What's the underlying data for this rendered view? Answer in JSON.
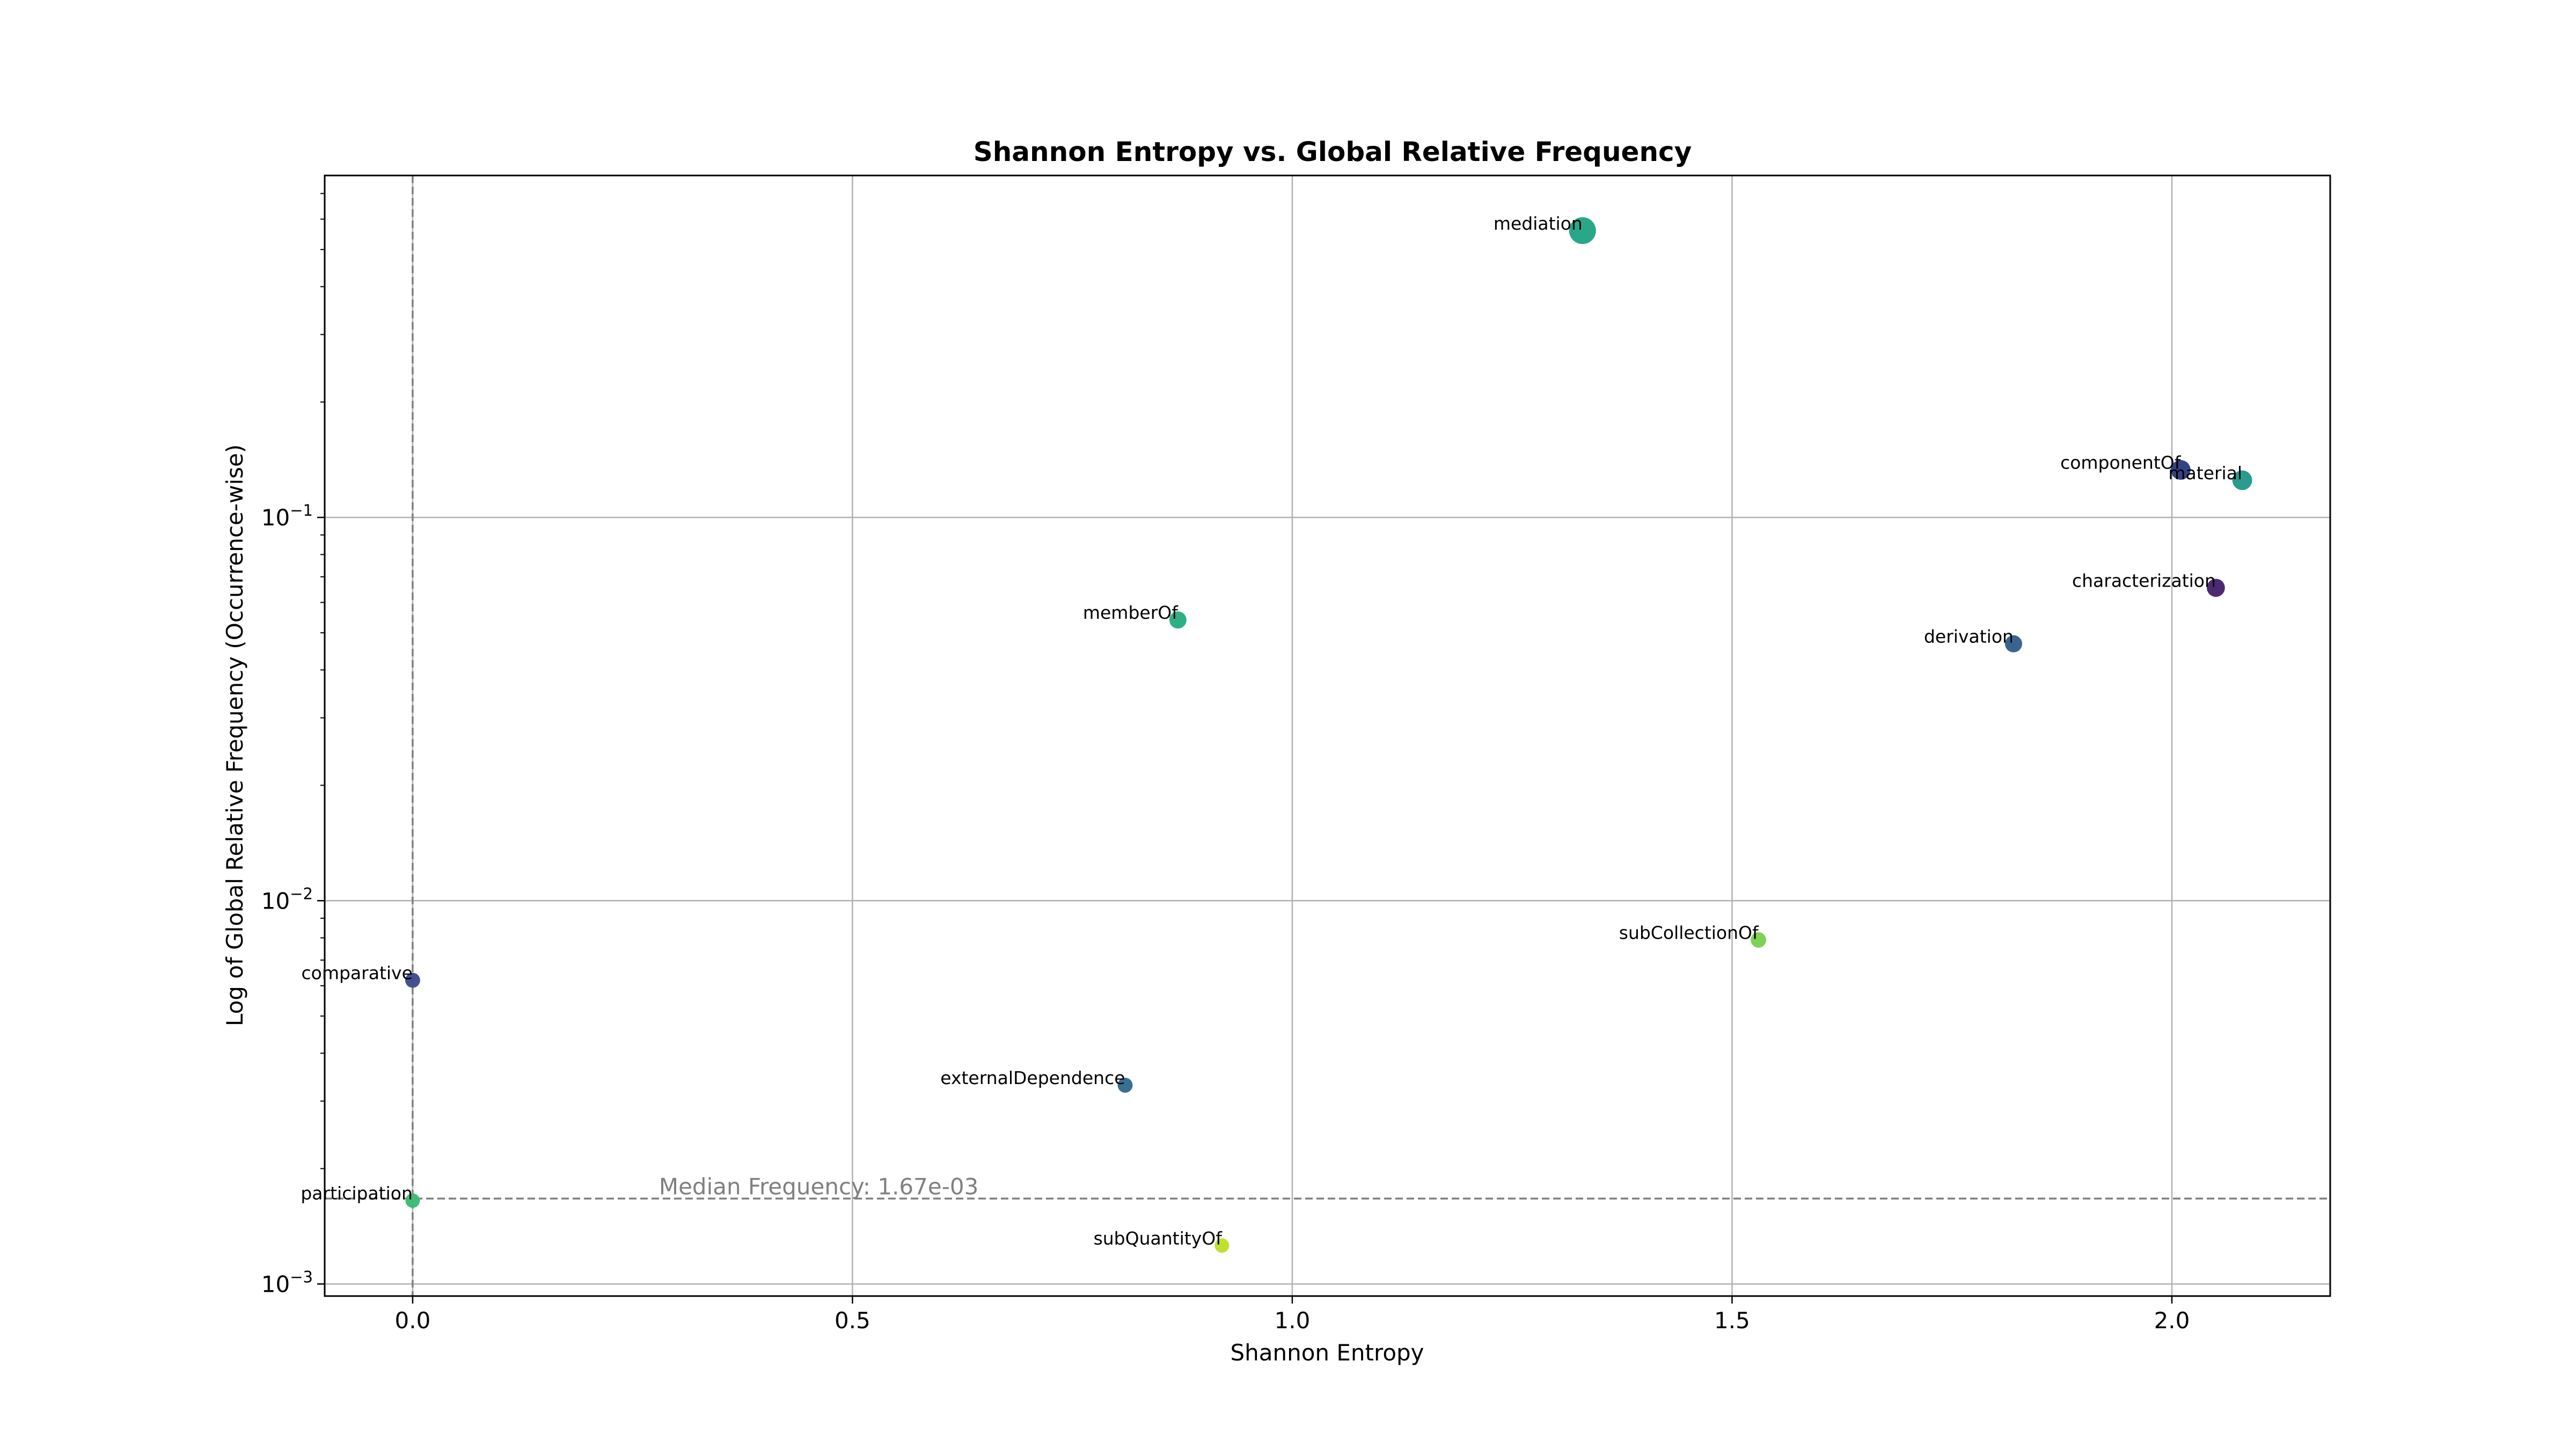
{
  "chart_data": {
    "type": "scatter",
    "title": "Shannon Entropy vs. Global Relative Frequency",
    "xlabel": "Shannon Entropy",
    "ylabel": "Log of Global Relative Frequency (Occurrence-wise)",
    "xlim": [
      -0.1,
      2.18
    ],
    "ylim": [
      0.00093,
      0.78
    ],
    "yscale": "log",
    "grid": true,
    "xticks": [
      {
        "value": 0.0,
        "label": "0.0"
      },
      {
        "value": 0.5,
        "label": "0.5"
      },
      {
        "value": 1.0,
        "label": "1.0"
      },
      {
        "value": 1.5,
        "label": "1.5"
      },
      {
        "value": 2.0,
        "label": "2.0"
      }
    ],
    "yticks": [
      {
        "value": 0.1,
        "base": "10",
        "exp": "−1"
      },
      {
        "value": 0.01,
        "base": "10",
        "exp": "−2"
      },
      {
        "value": 0.001,
        "base": "10",
        "exp": "−3"
      }
    ],
    "reference_lines": {
      "median": {
        "value": 0.00167,
        "label": "Median Frequency: 1.67e-03",
        "color": "#808080"
      },
      "vertical_x": 0.0
    },
    "points": [
      {
        "name": "mediation",
        "x": 1.33,
        "y": 0.56,
        "size": 1.0,
        "color": "#21a585"
      },
      {
        "name": "componentOf",
        "x": 2.01,
        "y": 0.133,
        "size": 0.4,
        "color": "#2c3e7f"
      },
      {
        "name": "material",
        "x": 2.08,
        "y": 0.125,
        "size": 0.4,
        "color": "#22988b"
      },
      {
        "name": "characterization",
        "x": 2.05,
        "y": 0.0655,
        "size": 0.3,
        "color": "#46226d"
      },
      {
        "name": "derivation",
        "x": 1.82,
        "y": 0.0468,
        "size": 0.25,
        "color": "#335f8d"
      },
      {
        "name": "memberOf",
        "x": 0.87,
        "y": 0.054,
        "size": 0.25,
        "color": "#27ad81"
      },
      {
        "name": "subCollectionOf",
        "x": 1.53,
        "y": 0.0079,
        "size": 0.17,
        "color": "#7ad151"
      },
      {
        "name": "comparative",
        "x": 0.0,
        "y": 0.0062,
        "size": 0.15,
        "color": "#3d4b8a"
      },
      {
        "name": "externalDependence",
        "x": 0.81,
        "y": 0.0033,
        "size": 0.15,
        "color": "#2f6c8e"
      },
      {
        "name": "participation",
        "x": 0.0,
        "y": 0.00165,
        "size": 0.13,
        "color": "#3cbb75"
      },
      {
        "name": "subQuantityOf",
        "x": 0.92,
        "y": 0.00126,
        "size": 0.13,
        "color": "#bddf26"
      }
    ]
  }
}
